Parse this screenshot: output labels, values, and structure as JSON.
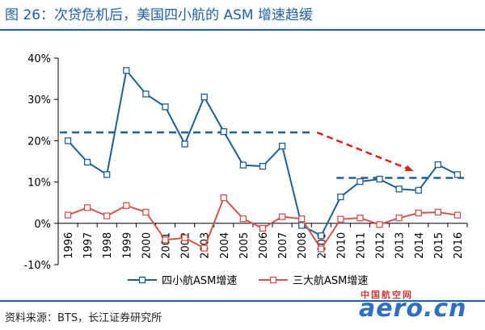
{
  "title": "图 26：次贷危机后，美国四小航的 ASM 增速趋缓",
  "source": "资料来源：BTS，长江证券研究所",
  "watermark": {
    "cn": "中国航空网",
    "en": "aero.cn"
  },
  "colors": {
    "title": "#1f5fa5",
    "series1": "#1f5f8f",
    "series2": "#d2544f",
    "dashed_blue": "#1f5f8f",
    "arrow_red": "#d9231d"
  },
  "chart_data": {
    "type": "line",
    "x": [
      "1996",
      "1997",
      "1998",
      "1999",
      "2000",
      "2001",
      "2002",
      "2003",
      "2004",
      "2005",
      "2006",
      "2007",
      "2008",
      "2009",
      "2010",
      "2011",
      "2012",
      "2013",
      "2014",
      "2015",
      "2016"
    ],
    "series": [
      {
        "name": "四小航ASM增速",
        "values": [
          20,
          14.8,
          11.8,
          37,
          31.3,
          28.2,
          19.2,
          30.6,
          22.2,
          14.1,
          13.8,
          18.7,
          -0.5,
          -3,
          6.4,
          10.1,
          10.7,
          8.3,
          8,
          14.2,
          11.8
        ]
      },
      {
        "name": "三大航ASM增速",
        "values": [
          2,
          3.8,
          1.8,
          4.3,
          2.7,
          -4,
          -3.5,
          -6,
          6.2,
          1.1,
          -1.2,
          1.6,
          1.1,
          -6.2,
          1,
          1.3,
          -0.3,
          1.3,
          2.5,
          2.7,
          2
        ]
      }
    ],
    "yticks": [
      "40%",
      "30%",
      "20%",
      "10%",
      "0%",
      "-10%"
    ],
    "ylim": [
      -10,
      40
    ],
    "xlabel": "",
    "ylabel": "",
    "grid": false,
    "legend_position": "bottom",
    "annotations": {
      "dashed_line_1": {
        "x_start": "1996",
        "x_end": "2008",
        "y": 22
      },
      "dashed_line_2": {
        "x_start": "2010",
        "x_end": "2016",
        "y": 11
      },
      "arrow": {
        "from_x": "2009",
        "from_y": 22,
        "to_x": "2014",
        "to_y": 12.8
      }
    }
  }
}
